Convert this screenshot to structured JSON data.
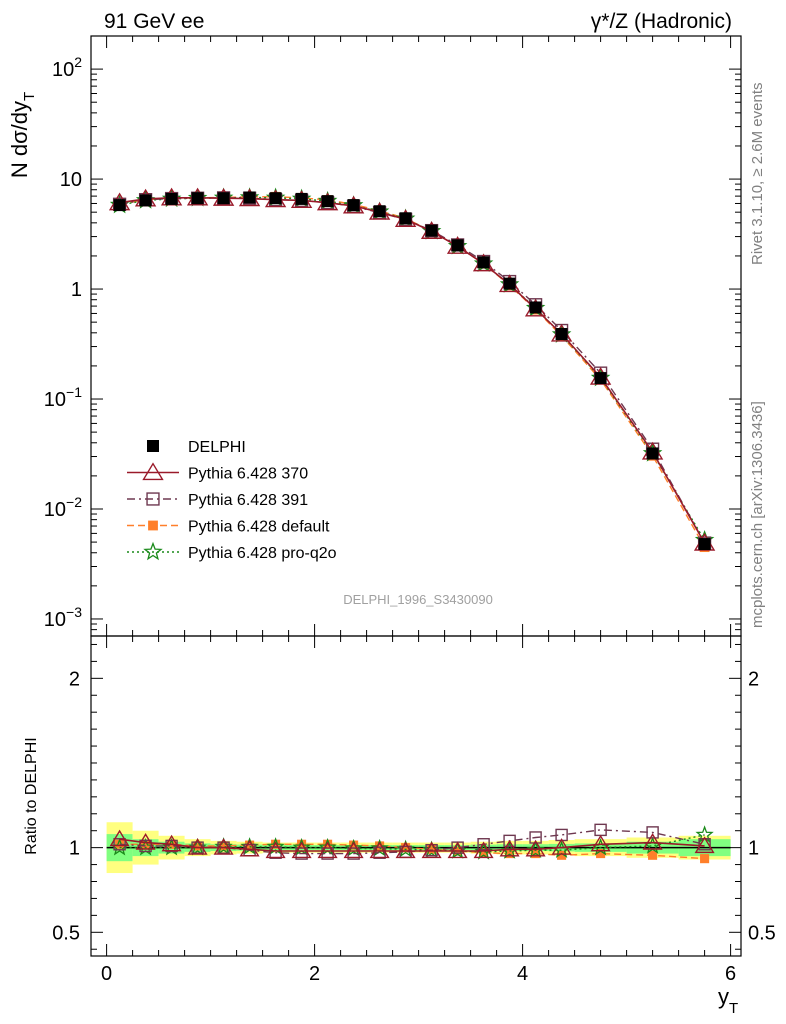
{
  "header": {
    "left": "91 GeV ee",
    "right": "γ*/Z (Hadronic)"
  },
  "side_text": {
    "rivet": "Rivet 3.1.10, ≥ 2.6M events",
    "mcplots": "mcplots.cern.ch [arXiv:1306.3436]"
  },
  "ref_id": "DELPHI_1996_S3430090",
  "colors": {
    "data": "#000000",
    "p370": "#9a1a2a",
    "p391": "#6e3850",
    "pdefault": "#ff7f2a",
    "pq2o": "#1a8a1a",
    "band_inner": "#80ff80",
    "band_outer": "#ffff80"
  },
  "chart_data": [
    {
      "type": "line",
      "panel": "main",
      "ylabel_main": "N dσ/dy",
      "ylabel_sub": "T",
      "xlabel_main": "y",
      "xlabel_sub": "T",
      "yscale": "log",
      "ylim": [
        0.0007,
        200
      ],
      "xlim": [
        -0.15,
        6.1
      ],
      "yticks": [
        {
          "v": 0.001,
          "base": "10",
          "exp": "−3"
        },
        {
          "v": 0.01,
          "base": "10",
          "exp": "−2"
        },
        {
          "v": 0.1,
          "base": "10",
          "exp": "−1"
        },
        {
          "v": 1,
          "base": "1",
          "exp": ""
        },
        {
          "v": 10,
          "base": "10",
          "exp": ""
        },
        {
          "v": 100,
          "base": "10",
          "exp": "2"
        }
      ],
      "x": [
        0.125,
        0.375,
        0.625,
        0.875,
        1.125,
        1.375,
        1.625,
        1.875,
        2.125,
        2.375,
        2.625,
        2.875,
        3.125,
        3.375,
        3.625,
        3.875,
        4.125,
        4.375,
        4.75,
        5.25,
        5.75
      ],
      "legend": [
        {
          "key": "data",
          "label": "DELPHI"
        },
        {
          "key": "p370",
          "label": "Pythia 6.428 370"
        },
        {
          "key": "p391",
          "label": "Pythia 6.428 391"
        },
        {
          "key": "pdefault",
          "label": "Pythia 6.428 default"
        },
        {
          "key": "pq2o",
          "label": "Pythia 6.428 pro-q2o"
        }
      ],
      "series": [
        {
          "key": "data",
          "name": "DELPHI",
          "marker": "square-filled",
          "values": [
            5.8,
            6.4,
            6.6,
            6.7,
            6.7,
            6.8,
            6.7,
            6.6,
            6.3,
            5.8,
            5.1,
            4.4,
            3.4,
            2.5,
            1.75,
            1.12,
            0.68,
            0.39,
            0.155,
            0.032,
            0.0048
          ]
        },
        {
          "key": "p370",
          "name": "Pythia 6.428 370",
          "marker": "triangle-open",
          "values": [
            6.1,
            6.6,
            6.75,
            6.75,
            6.7,
            6.65,
            6.5,
            6.4,
            6.1,
            5.7,
            5.0,
            4.3,
            3.35,
            2.45,
            1.7,
            1.1,
            0.66,
            0.39,
            0.158,
            0.033,
            0.0049
          ]
        },
        {
          "key": "p391",
          "name": "Pythia 6.428 391",
          "marker": "square-open",
          "values": [
            5.9,
            6.5,
            6.65,
            6.7,
            6.75,
            6.7,
            6.5,
            6.4,
            6.1,
            5.65,
            4.95,
            4.3,
            3.4,
            2.52,
            1.78,
            1.17,
            0.72,
            0.42,
            0.172,
            0.035,
            0.0049
          ]
        },
        {
          "key": "pdefault",
          "name": "Pythia 6.428 default",
          "marker": "square-filled-small",
          "values": [
            5.9,
            6.5,
            6.7,
            6.75,
            6.8,
            6.9,
            6.9,
            6.75,
            6.45,
            5.9,
            5.15,
            4.4,
            3.35,
            2.45,
            1.7,
            1.08,
            0.65,
            0.375,
            0.15,
            0.0305,
            0.0045
          ]
        },
        {
          "key": "pq2o",
          "name": "Pythia 6.428 pro-q2o",
          "marker": "star-open",
          "values": [
            5.8,
            6.4,
            6.6,
            6.7,
            6.75,
            6.8,
            6.75,
            6.6,
            6.3,
            5.75,
            5.05,
            4.35,
            3.35,
            2.45,
            1.7,
            1.1,
            0.67,
            0.385,
            0.155,
            0.032,
            0.0052
          ]
        }
      ]
    },
    {
      "type": "line",
      "panel": "ratio",
      "ylabel": "Ratio to DELPHI",
      "ylim": [
        0.36,
        2.25
      ],
      "xlim": [
        -0.15,
        6.1
      ],
      "yticks": [
        0.5,
        1,
        2
      ],
      "yticks_labels": [
        "0.5",
        "1",
        "2"
      ],
      "xticks": [
        0,
        2,
        4,
        6
      ],
      "xticks_labels": [
        "0",
        "2",
        "4",
        "6"
      ],
      "x": [
        0.125,
        0.375,
        0.625,
        0.875,
        1.125,
        1.375,
        1.625,
        1.875,
        2.125,
        2.375,
        2.625,
        2.875,
        3.125,
        3.375,
        3.625,
        3.875,
        4.125,
        4.375,
        4.75,
        5.25,
        5.75
      ],
      "bins": [
        [
          0,
          0.25
        ],
        [
          0.25,
          0.5
        ],
        [
          0.5,
          0.75
        ],
        [
          0.75,
          1.0
        ],
        [
          1.0,
          1.25
        ],
        [
          1.25,
          1.5
        ],
        [
          1.5,
          1.75
        ],
        [
          1.75,
          2.0
        ],
        [
          2.0,
          2.25
        ],
        [
          2.25,
          2.5
        ],
        [
          2.5,
          2.75
        ],
        [
          2.75,
          3.0
        ],
        [
          3.0,
          3.25
        ],
        [
          3.25,
          3.5
        ],
        [
          3.5,
          3.75
        ],
        [
          3.75,
          4.0
        ],
        [
          4.0,
          4.25
        ],
        [
          4.25,
          4.5
        ],
        [
          4.5,
          5.0
        ],
        [
          5.0,
          5.5
        ],
        [
          5.5,
          6.0
        ]
      ],
      "band_inner": [
        0.08,
        0.05,
        0.035,
        0.025,
        0.02,
        0.018,
        0.015,
        0.015,
        0.015,
        0.015,
        0.015,
        0.015,
        0.015,
        0.015,
        0.018,
        0.02,
        0.02,
        0.022,
        0.025,
        0.035,
        0.05
      ],
      "band_outer": [
        0.15,
        0.1,
        0.07,
        0.05,
        0.04,
        0.035,
        0.03,
        0.03,
        0.03,
        0.03,
        0.03,
        0.03,
        0.03,
        0.03,
        0.035,
        0.04,
        0.04,
        0.045,
        0.05,
        0.06,
        0.07
      ],
      "series": [
        {
          "key": "p370",
          "values": [
            1.05,
            1.03,
            1.02,
            1.0,
            1.0,
            0.99,
            0.98,
            0.98,
            0.98,
            0.98,
            0.98,
            0.98,
            0.98,
            0.98,
            0.98,
            0.99,
            0.99,
            1.0,
            1.02,
            1.03,
            1.01
          ]
        },
        {
          "key": "p391",
          "values": [
            1.02,
            1.01,
            1.01,
            1.0,
            1.0,
            0.985,
            0.97,
            0.965,
            0.965,
            0.965,
            0.97,
            0.975,
            0.985,
            1.0,
            1.02,
            1.04,
            1.06,
            1.075,
            1.105,
            1.09,
            1.02
          ]
        },
        {
          "key": "pdefault",
          "values": [
            1.02,
            1.02,
            1.02,
            1.01,
            1.01,
            1.015,
            1.02,
            1.02,
            1.02,
            1.015,
            1.01,
            1.0,
            0.99,
            0.98,
            0.97,
            0.965,
            0.965,
            0.955,
            0.965,
            0.955,
            0.935
          ]
        },
        {
          "key": "pq2o",
          "values": [
            1.0,
            1.0,
            1.0,
            1.0,
            1.005,
            1.005,
            1.005,
            1.0,
            1.0,
            0.995,
            0.995,
            0.99,
            0.985,
            0.98,
            0.975,
            0.98,
            0.985,
            0.985,
            1.0,
            1.01,
            1.075
          ]
        }
      ]
    }
  ]
}
